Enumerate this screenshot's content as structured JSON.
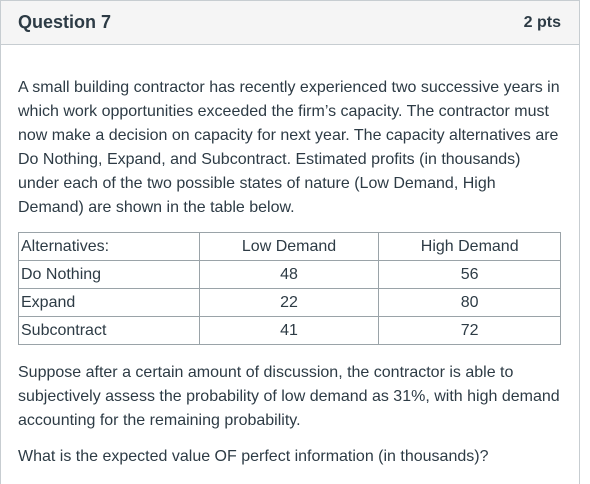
{
  "header": {
    "title": "Question 7",
    "points": "2 pts"
  },
  "body": {
    "intro": "A small building contractor has recently experienced two successive years in which work opportunities exceeded the firm’s capacity.  The contractor must now make a decision on capacity for next year.  The capacity alternatives are Do Nothing, Expand, and Subcontract.  Estimated profits (in thousands) under each of the two possible states of nature (Low Demand, High Demand) are shown in the table below.",
    "table": {
      "headers": [
        "Alternatives:",
        "Low Demand",
        "High Demand"
      ],
      "rows": [
        [
          "Do Nothing",
          "48",
          "56"
        ],
        [
          "Expand",
          "22",
          "80"
        ],
        [
          "Subcontract",
          "41",
          "72"
        ]
      ]
    },
    "followup": "Suppose after a certain amount of discussion, the contractor is able to subjectively assess the probability of low demand as 31%, with high demand accounting for the remaining probability.",
    "question": "What is the expected value OF perfect information (in thousands)?"
  },
  "colors": {
    "text": "#2d3b45",
    "header_bg": "#f5f5f5",
    "border": "#c7cdd1",
    "table_border": "#9aa3a8"
  }
}
